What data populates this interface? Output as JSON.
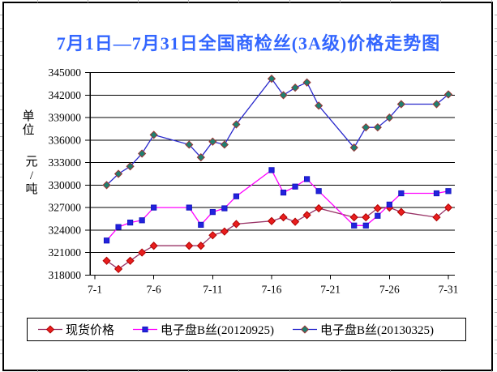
{
  "window": {
    "background": "#ffffff",
    "border_color": "#000000"
  },
  "title": {
    "text": "7月1日—7月31日全国商检丝(3A级)价格走势图",
    "color": "#3366ff"
  },
  "y_axis": {
    "unit_top": "单位",
    "unit_side": "元/吨",
    "min": 318000,
    "max": 345000,
    "step": 3000,
    "tick_labels": [
      "345000",
      "342000",
      "339000",
      "336000",
      "333000",
      "330000",
      "327000",
      "324000",
      "321000",
      "318000"
    ]
  },
  "x_axis": {
    "tick_labels": [
      "7-1",
      "7-6",
      "7-11",
      "7-16",
      "7-21",
      "7-26",
      "7-31"
    ],
    "tick_days": [
      1,
      6,
      11,
      16,
      21,
      26,
      31
    ],
    "days_in_month": 31
  },
  "chart_data": {
    "type": "line",
    "title": "7月1日—7月31日全国商检丝(3A级)价格走势图",
    "ylabel": "单位 元/吨",
    "ylim": [
      318000,
      345000
    ],
    "grid": "horizontal",
    "legend_position": "bottom",
    "categories": [
      "7-2",
      "7-3",
      "7-4",
      "7-5",
      "7-6",
      "7-9",
      "7-10",
      "7-11",
      "7-12",
      "7-13",
      "7-16",
      "7-17",
      "7-18",
      "7-19",
      "7-20",
      "7-23",
      "7-24",
      "7-25",
      "7-26",
      "7-27",
      "7-30",
      "7-31"
    ],
    "days": [
      2,
      3,
      4,
      5,
      6,
      9,
      10,
      11,
      12,
      13,
      16,
      17,
      18,
      19,
      20,
      23,
      24,
      25,
      26,
      27,
      30,
      31
    ],
    "series": [
      {
        "name": "现货价格",
        "line_color": "#993366",
        "marker": "diamond",
        "marker_color": "#e81e1e",
        "marker_stroke": "#b00000",
        "values": [
          319900,
          318800,
          319900,
          321000,
          321900,
          321900,
          321900,
          323300,
          323800,
          324800,
          325200,
          325700,
          325100,
          326000,
          326900,
          325700,
          325700,
          326900,
          327000,
          326400,
          325700,
          327000
        ]
      },
      {
        "name": "电子盘B丝(20120925)",
        "line_color": "#ff00ff",
        "marker": "square",
        "marker_color": "#2222dd",
        "marker_stroke": "#1111bb",
        "values": [
          322600,
          324400,
          325000,
          325300,
          327000,
          327000,
          324700,
          326400,
          326900,
          328500,
          332000,
          329000,
          329800,
          330800,
          329200,
          324600,
          324600,
          325900,
          327400,
          328900,
          328900,
          329200
        ]
      },
      {
        "name": "电子盘B丝(20130325)",
        "line_color": "#2828cc",
        "marker": "diamond",
        "marker_color": "#1f8070",
        "marker_stroke": "#993333",
        "values": [
          330000,
          331500,
          332500,
          334200,
          336700,
          335400,
          333700,
          335800,
          335400,
          338100,
          344200,
          342000,
          343000,
          343700,
          340600,
          335000,
          337700,
          337700,
          339000,
          340800,
          340800,
          342100
        ]
      }
    ]
  },
  "legend": {
    "items": [
      {
        "label": "现货价格"
      },
      {
        "label": "电子盘B丝(20120925)"
      },
      {
        "label": "电子盘B丝(20130325)"
      }
    ]
  }
}
